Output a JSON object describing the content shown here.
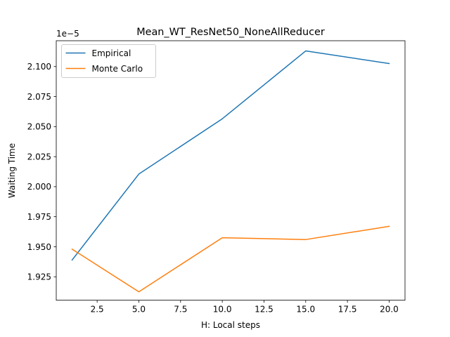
{
  "chart_data": {
    "type": "line",
    "title": "Mean_WT_ResNet50_NoneAllReducer",
    "xlabel": "H: Local steps",
    "ylabel": "Waiting Time",
    "y_offset_label": "1e−5",
    "x": [
      1,
      5,
      10,
      15,
      20
    ],
    "xlim": [
      0.05,
      20.95
    ],
    "ylim": [
      1.9055,
      2.1215
    ],
    "x_ticks": [
      2.5,
      5.0,
      7.5,
      10.0,
      12.5,
      15.0,
      17.5,
      20.0
    ],
    "x_tick_labels": [
      "2.5",
      "5.0",
      "7.5",
      "10.0",
      "12.5",
      "15.0",
      "17.5",
      "20.0"
    ],
    "y_ticks": [
      1.925,
      1.95,
      1.975,
      2.0,
      2.025,
      2.05,
      2.075,
      2.1
    ],
    "y_tick_labels": [
      "1.925",
      "1.950",
      "1.975",
      "2.000",
      "2.025",
      "2.050",
      "2.075",
      "2.100"
    ],
    "grid": false,
    "legend_position": "top-left",
    "series": [
      {
        "name": "Empirical",
        "color": "#1f77b4",
        "values": [
          1.939,
          2.0105,
          2.0565,
          2.113,
          2.1025
        ]
      },
      {
        "name": "Monte Carlo",
        "color": "#ff7f0e",
        "values": [
          1.948,
          1.9125,
          1.9575,
          1.956,
          1.967
        ]
      }
    ]
  }
}
